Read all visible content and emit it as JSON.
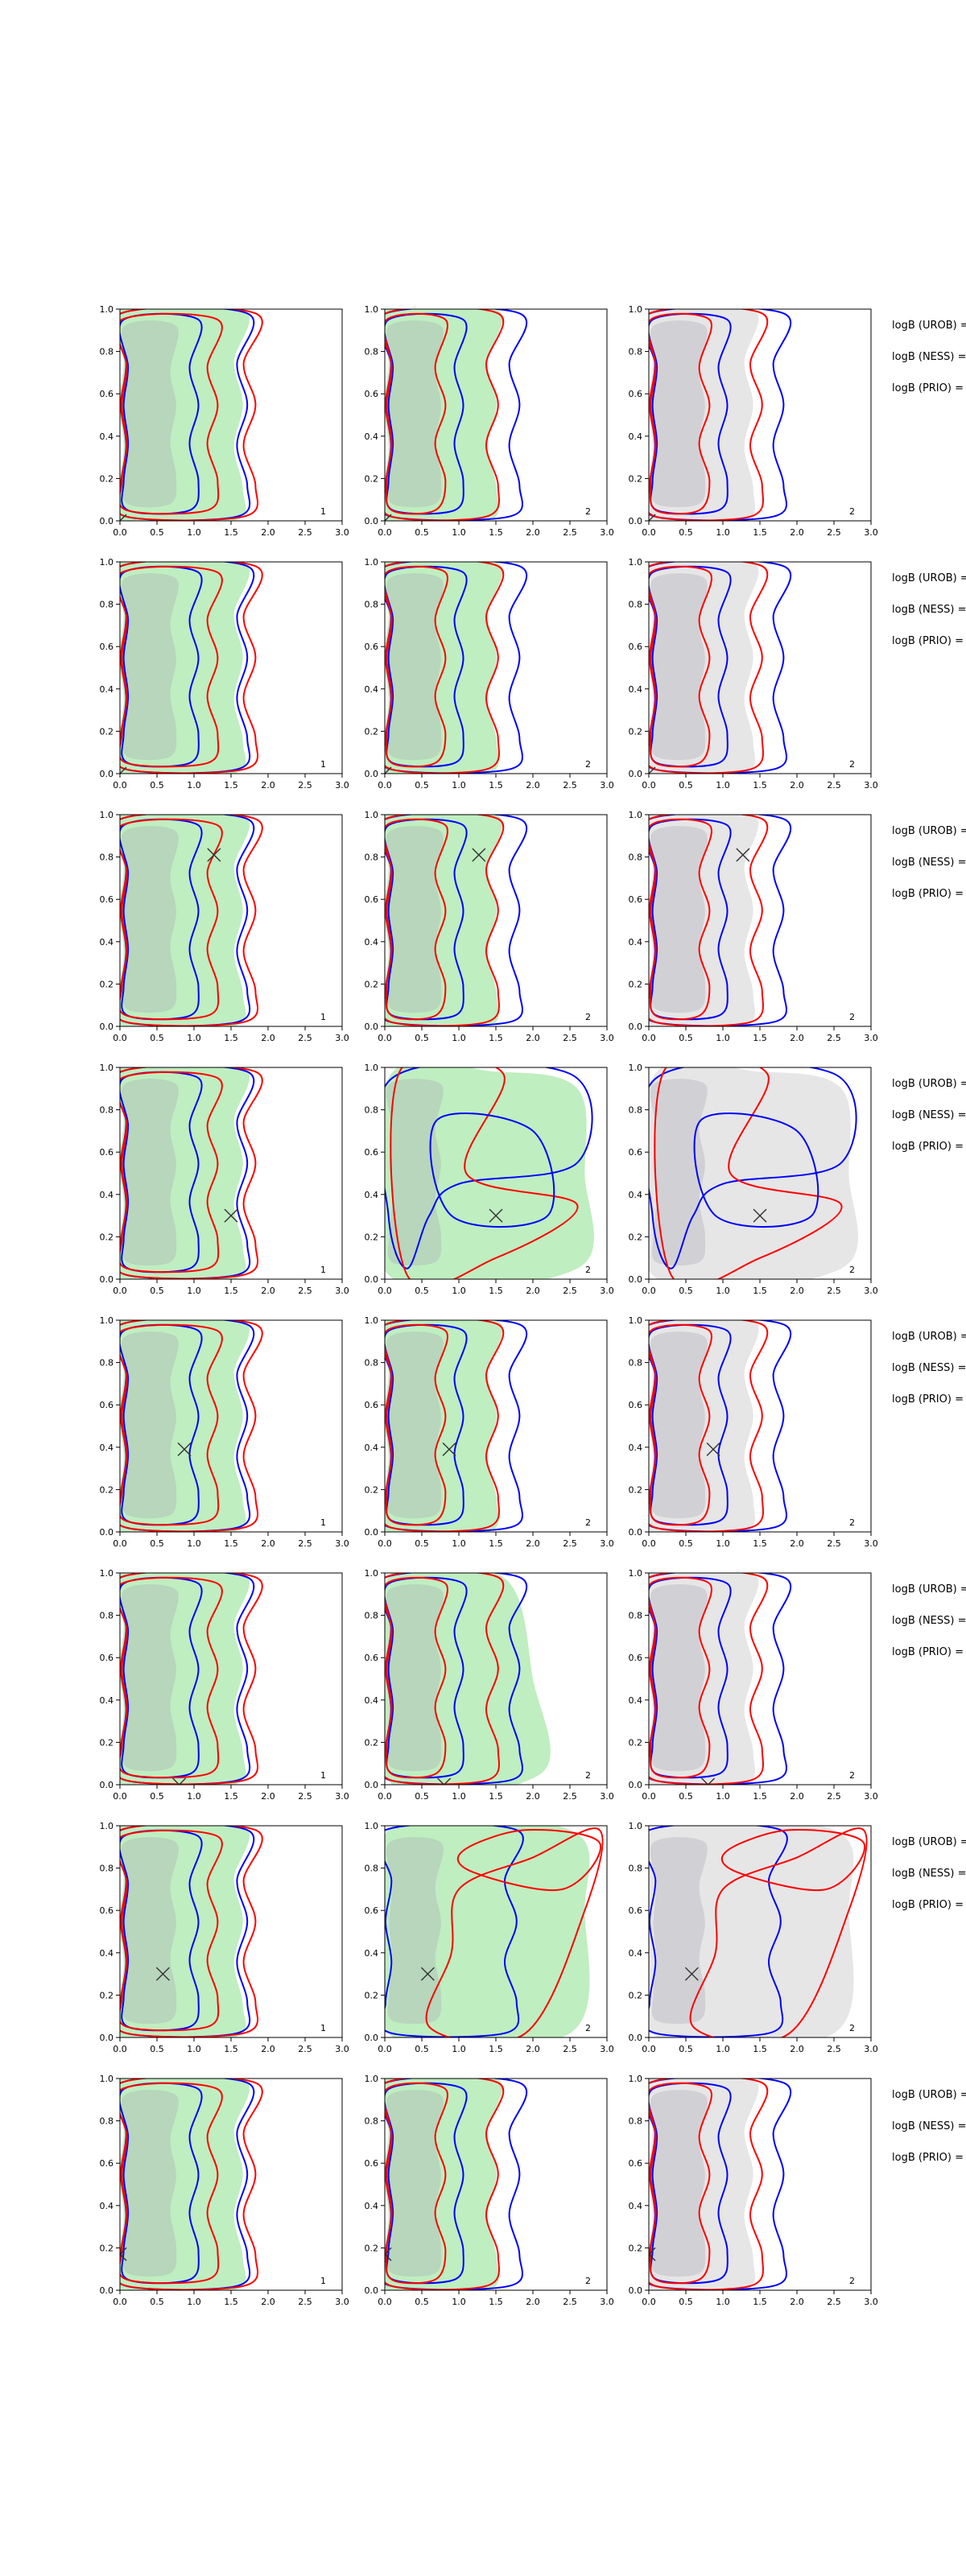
{
  "figure": {
    "colors": {
      "green_fill": "#bfeec0",
      "grey_fill": "#e6e6e6",
      "inner_grey": "#a8a8b4",
      "blue": "#0000ff",
      "red": "#ff0000",
      "marker": "#333333"
    },
    "row_labels": [
      "logB (UROB) =",
      "logB (NESS) =",
      "logB (PRIO) ="
    ],
    "panel_corner_labels": [
      "1",
      "2",
      "2"
    ]
  },
  "chart_data": {
    "type": "contour-grid",
    "rows": 8,
    "columns": 3,
    "xlim": [
      0,
      3
    ],
    "ylim": [
      0,
      1
    ],
    "xticks": [
      "0.0",
      "0.5",
      "1.0",
      "1.5",
      "2.0",
      "2.5",
      "3.0"
    ],
    "yticks": [
      "0.0",
      "0.2",
      "0.4",
      "0.6",
      "0.8",
      "1.0"
    ],
    "markers": [
      {
        "row": 1,
        "x": 0.0,
        "y": 0.0
      },
      {
        "row": 2,
        "x": 0.0,
        "y": 0.0
      },
      {
        "row": 3,
        "x": 1.27,
        "y": 0.81
      },
      {
        "row": 4,
        "x": 1.5,
        "y": 0.3
      },
      {
        "row": 5,
        "x": 0.87,
        "y": 0.39
      },
      {
        "row": 6,
        "x": 0.8,
        "y": 0.0
      },
      {
        "row": 7,
        "x": 0.58,
        "y": 0.3
      },
      {
        "row": 8,
        "x": 0.0,
        "y": 0.17
      }
    ],
    "series": [
      {
        "color": "blue",
        "style": "contour line"
      },
      {
        "color": "red",
        "style": "contour line"
      },
      {
        "color": "green",
        "style": "filled region"
      },
      {
        "color": "grey",
        "style": "filled region"
      }
    ],
    "legend": "none",
    "grid": false
  }
}
